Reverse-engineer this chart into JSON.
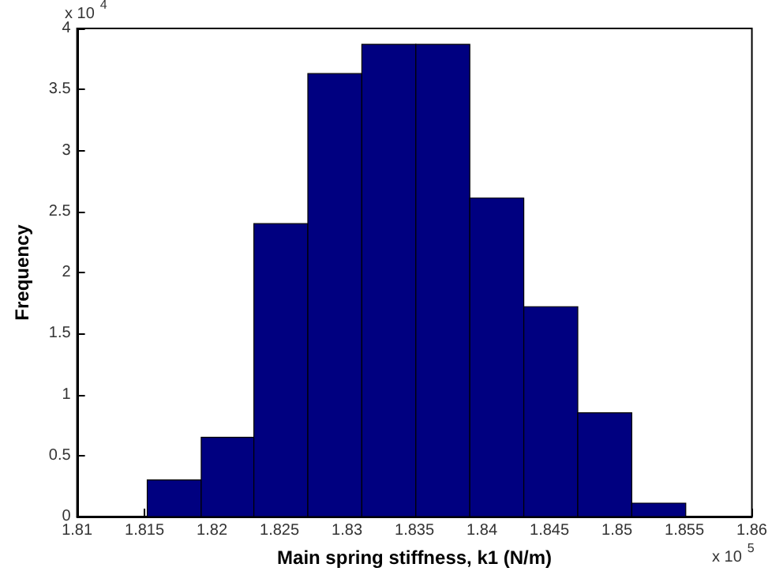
{
  "chart_data": {
    "type": "histogram",
    "xlabel": "Main spring stiffness, k1 (N/m)",
    "ylabel": "Frequency",
    "bins": [
      1.8152,
      1.8192,
      1.8231,
      1.8271,
      1.8311,
      1.8351,
      1.8391,
      1.8431,
      1.8471,
      1.8511,
      1.8551
    ],
    "values": [
      0.3,
      0.65,
      2.4,
      3.63,
      3.87,
      3.87,
      2.61,
      1.72,
      0.85,
      0.11
    ],
    "color": "#000080",
    "xlim": [
      1.81,
      1.86
    ],
    "xticks": [
      1.81,
      1.815,
      1.82,
      1.825,
      1.83,
      1.835,
      1.84,
      1.845,
      1.85,
      1.855,
      1.86
    ],
    "ylim": [
      0,
      4
    ],
    "yticks": [
      0,
      0.5,
      1,
      1.5,
      2,
      2.5,
      3,
      3.5,
      4
    ],
    "grid": false,
    "annotations": [
      "x 10$^{4}$",
      "x 10$^{5}$"
    ]
  }
}
